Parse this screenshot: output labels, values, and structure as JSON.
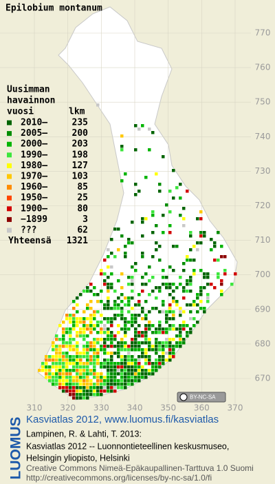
{
  "title": "Epilobium montanum",
  "legend": {
    "heading": [
      "Uusimman",
      "havainnon"
    ],
    "col_headers": [
      "vuosi",
      "lkm"
    ],
    "rows": [
      {
        "label": "2010–",
        "count": 235,
        "color": "#006400"
      },
      {
        "label": "2005–",
        "count": 200,
        "color": "#008c00"
      },
      {
        "label": "2000–",
        "count": 203,
        "color": "#00b400"
      },
      {
        "label": "1990–",
        "count": 198,
        "color": "#3ce63c"
      },
      {
        "label": "1980–",
        "count": 127,
        "color": "#ffff00"
      },
      {
        "label": "1970–",
        "count": 103,
        "color": "#ffc800"
      },
      {
        "label": "1960–",
        "count": 85,
        "color": "#ff8c00"
      },
      {
        "label": "1950–",
        "count": 25,
        "color": "#ff4600"
      },
      {
        "label": "1900–",
        "count": 80,
        "color": "#d20000"
      },
      {
        "label": "−1899",
        "count": 3,
        "color": "#8c0000"
      },
      {
        "label": "???",
        "count": 62,
        "color": "#c8c8c8"
      }
    ],
    "total_label": "Yhteensä",
    "total": 1321
  },
  "map": {
    "xticks": [
      310,
      320,
      330,
      340,
      350,
      360,
      370
    ],
    "yticks": [
      670,
      680,
      690,
      700,
      710,
      720,
      730,
      740,
      750,
      760,
      770
    ]
  },
  "license_badge": "BY-NC-SA",
  "side_label": "LUOMUS",
  "credits": {
    "link": "Kasviatlas 2012, www.luomus.fi/kasviatlas",
    "citation": [
      "Lampinen, R. & Lahti, T. 2013:",
      "Kasviatlas 2012 -- Luonnontieteellinen keskusmuseo,",
      "Helsingin yliopisto, Helsinki"
    ],
    "license": [
      "Creative Commons Nimeä-Epäkaupallinen-Tarttuva 1.0 Suomi",
      "http://creativecommons.org/licenses/by-nc-sa/1.0/fi"
    ]
  }
}
